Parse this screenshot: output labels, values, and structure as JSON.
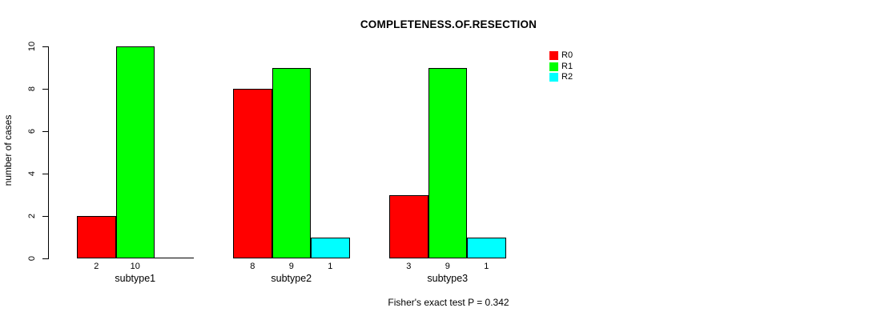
{
  "chart_data": {
    "type": "bar",
    "title": "COMPLETENESS.OF.RESECTION",
    "ylabel": "number of cases",
    "xlabel": "",
    "categories": [
      "subtype1",
      "subtype2",
      "subtype3"
    ],
    "series": [
      {
        "name": "R0",
        "color": "#FF0000",
        "values": [
          2,
          8,
          3
        ]
      },
      {
        "name": "R1",
        "color": "#00FF00",
        "values": [
          10,
          9,
          9
        ]
      },
      {
        "name": "R2",
        "color": "#00FFFF",
        "values": [
          0,
          1,
          1
        ]
      }
    ],
    "bar_value_labels": [
      [
        "2",
        "10",
        ""
      ],
      [
        "8",
        "9",
        "1"
      ],
      [
        "3",
        "9",
        "1"
      ]
    ],
    "ylim": [
      0,
      10
    ],
    "yticks": [
      0,
      2,
      4,
      6,
      8,
      10
    ],
    "grid": false,
    "legend": {
      "position": "top-right",
      "entries": [
        "R0",
        "R1",
        "R2"
      ]
    },
    "annotation": "Fisher's exact test P = 0.342",
    "axis_color": "#000000",
    "background": "#FFFFFF"
  }
}
